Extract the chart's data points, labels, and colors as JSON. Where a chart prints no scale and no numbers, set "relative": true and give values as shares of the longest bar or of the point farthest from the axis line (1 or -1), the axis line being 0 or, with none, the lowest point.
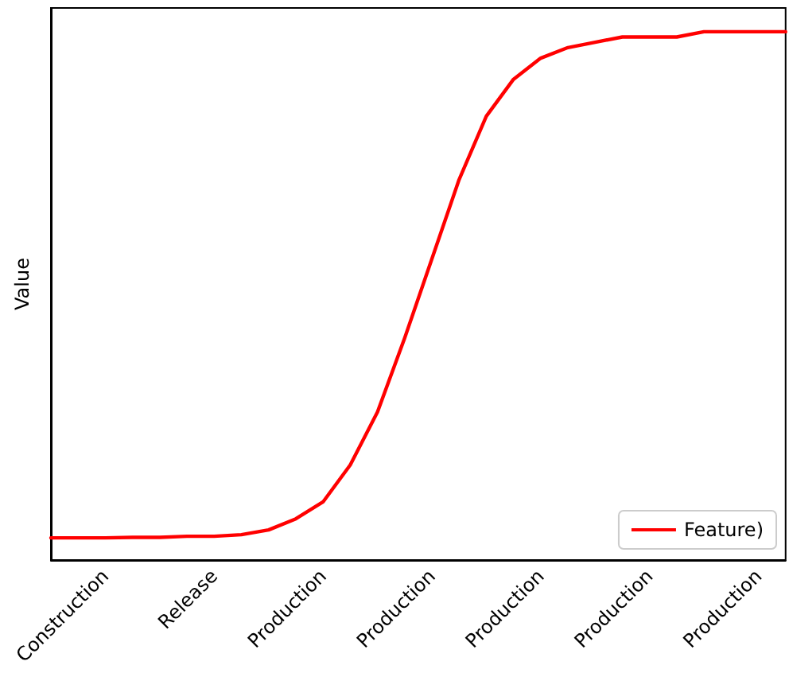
{
  "chart_data": {
    "type": "line",
    "ylabel": "Value",
    "relative": true,
    "legend": "bottom right",
    "marker": "none",
    "line_style": "solid",
    "grid": false,
    "categories": [
      null,
      null,
      "Construction",
      null,
      null,
      null,
      "Release",
      null,
      null,
      null,
      "Production",
      null,
      null,
      null,
      "Production",
      null,
      null,
      null,
      "Production",
      null,
      null,
      null,
      "Production",
      null,
      null,
      null,
      "Production",
      null
    ],
    "series": [
      {
        "name": "Feature)",
        "color": "#ff0000",
        "values": [
          0.042,
          0.042,
          0.042,
          0.043,
          0.043,
          0.045,
          0.045,
          0.048,
          0.057,
          0.078,
          0.11,
          0.18,
          0.28,
          0.42,
          0.57,
          0.72,
          0.84,
          0.91,
          0.95,
          0.97,
          0.98,
          0.99,
          0.99,
          0.99,
          1,
          1,
          1,
          1
        ]
      }
    ]
  }
}
